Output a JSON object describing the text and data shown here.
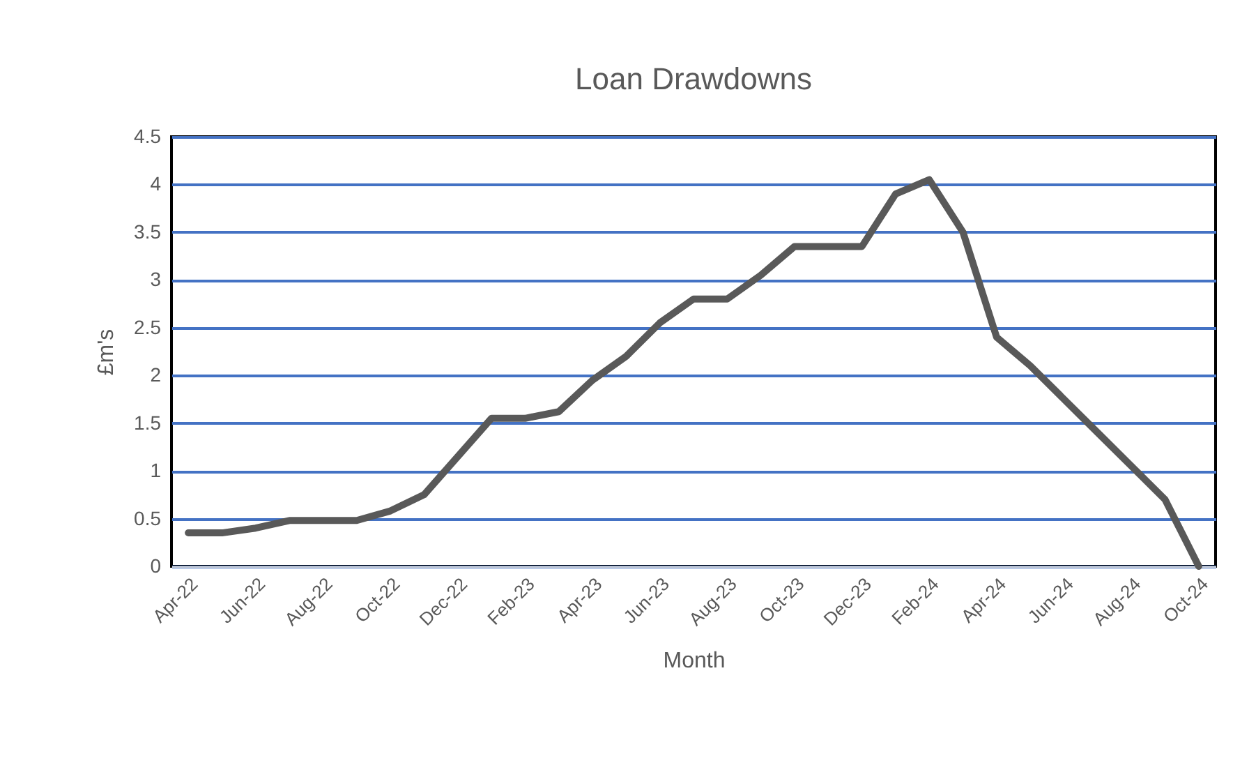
{
  "chart_data": {
    "type": "line",
    "title": "Loan Drawdowns",
    "xlabel": "Month",
    "ylabel": "£m's",
    "categories": [
      "Apr-22",
      null,
      "Jun-22",
      null,
      "Aug-22",
      null,
      "Oct-22",
      null,
      "Dec-22",
      null,
      "Feb-23",
      null,
      "Apr-23",
      null,
      "Jun-23",
      null,
      "Aug-23",
      null,
      "Oct-23",
      null,
      "Dec-23",
      null,
      "Feb-24",
      null,
      "Apr-24",
      null,
      "Jun-24",
      null,
      "Aug-24",
      null,
      "Oct-24"
    ],
    "series": [
      {
        "color": "#595959",
        "values": [
          0.35,
          0.35,
          0.4,
          0.48,
          0.48,
          0.48,
          0.58,
          0.75,
          1.15,
          1.55,
          1.55,
          1.62,
          1.95,
          2.2,
          2.55,
          2.8,
          2.8,
          3.05,
          3.35,
          3.35,
          3.35,
          3.9,
          4.05,
          3.5,
          2.4,
          2.1,
          1.75,
          1.4,
          1.05,
          0.7,
          0
        ]
      }
    ],
    "ylim": [
      0,
      4.5
    ],
    "yticks": [
      0,
      0.5,
      1,
      1.5,
      2,
      2.5,
      3,
      3.5,
      4,
      4.5
    ],
    "grid": "y",
    "marker": "none",
    "line_style": "solid"
  }
}
